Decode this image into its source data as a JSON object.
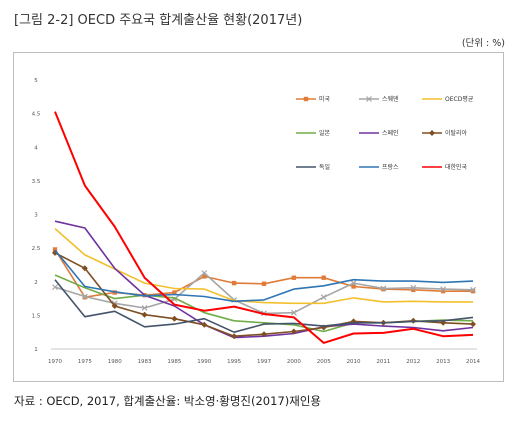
{
  "header": {
    "title": "[그림 2-2] OECD 주요국 합계출산율 현황(2017년)",
    "unit": "(단위 : %)"
  },
  "footer": {
    "source": "자료 : OECD, 2017, 합계출산율: 박소영·황명진(2017)재인용"
  },
  "chart_data": {
    "type": "line",
    "title": "",
    "xlabel": "",
    "ylabel": "",
    "ylim": [
      1,
      5
    ],
    "yticks": [
      "1",
      "1.5",
      "2",
      "2.5",
      "3",
      "3.5",
      "4",
      "4.5",
      "5"
    ],
    "grid": false,
    "legend_position": "top-right",
    "categories": [
      "1970",
      "1975",
      "1980",
      "1983",
      "1985",
      "1990",
      "1995",
      "1997",
      "2000",
      "2005",
      "2010",
      "2011",
      "2012",
      "2013",
      "2014"
    ],
    "series": [
      {
        "name": "미국",
        "color": "#e07b39",
        "marker": "square",
        "values": [
          2.48,
          1.77,
          1.84,
          1.8,
          1.84,
          2.08,
          1.98,
          1.97,
          2.06,
          2.06,
          1.93,
          1.89,
          1.88,
          1.86,
          1.86
        ]
      },
      {
        "name": "스웨덴",
        "color": "#a6a6a6",
        "marker": "cross",
        "values": [
          1.92,
          1.78,
          1.68,
          1.61,
          1.74,
          2.13,
          1.73,
          1.53,
          1.54,
          1.77,
          1.98,
          1.9,
          1.91,
          1.89,
          1.88
        ]
      },
      {
        "name": "OECD평균",
        "color": "#f2c02d",
        "marker": "none",
        "values": [
          2.79,
          2.4,
          2.19,
          1.98,
          1.9,
          1.89,
          1.72,
          1.69,
          1.68,
          1.68,
          1.76,
          1.7,
          1.71,
          1.7,
          1.7
        ]
      },
      {
        "name": "일본",
        "color": "#70ad47",
        "marker": "none",
        "values": [
          2.1,
          1.91,
          1.75,
          1.8,
          1.76,
          1.54,
          1.42,
          1.39,
          1.36,
          1.26,
          1.39,
          1.39,
          1.41,
          1.43,
          1.42
        ]
      },
      {
        "name": "스페인",
        "color": "#7030a0",
        "marker": "none",
        "values": [
          2.9,
          2.8,
          2.2,
          1.8,
          1.64,
          1.36,
          1.17,
          1.19,
          1.23,
          1.33,
          1.37,
          1.34,
          1.32,
          1.27,
          1.32
        ]
      },
      {
        "name": "이탈리아",
        "color": "#7f4f21",
        "marker": "diamond",
        "values": [
          2.43,
          2.2,
          1.64,
          1.51,
          1.45,
          1.36,
          1.19,
          1.22,
          1.26,
          1.32,
          1.41,
          1.39,
          1.42,
          1.39,
          1.37
        ]
      },
      {
        "name": "독일",
        "color": "#44546a",
        "marker": "none",
        "values": [
          2.03,
          1.48,
          1.56,
          1.33,
          1.37,
          1.45,
          1.25,
          1.37,
          1.38,
          1.34,
          1.39,
          1.39,
          1.41,
          1.42,
          1.47
        ]
      },
      {
        "name": "프랑스",
        "color": "#2e75b6",
        "marker": "none",
        "values": [
          2.47,
          1.93,
          1.85,
          1.79,
          1.81,
          1.78,
          1.71,
          1.73,
          1.89,
          1.94,
          2.03,
          2.01,
          2.01,
          1.99,
          2.01
        ]
      },
      {
        "name": "대한민국",
        "color": "#ff0000",
        "marker": "none",
        "values": [
          4.53,
          3.43,
          2.82,
          2.06,
          1.66,
          1.57,
          1.63,
          1.52,
          1.47,
          1.09,
          1.23,
          1.24,
          1.3,
          1.19,
          1.21
        ]
      }
    ]
  }
}
